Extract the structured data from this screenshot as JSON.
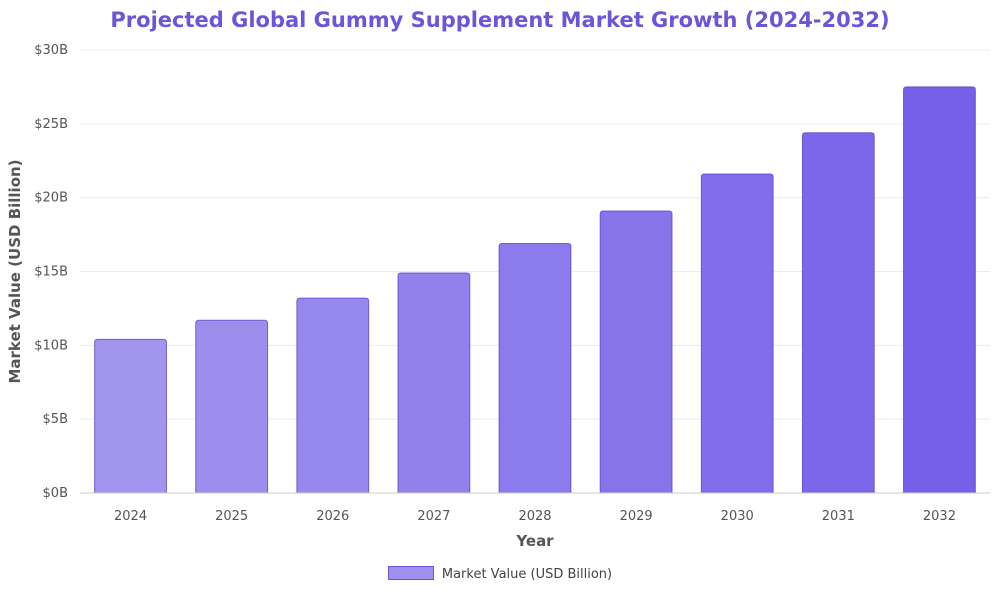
{
  "chart_data": {
    "type": "bar",
    "title": "Projected Global Gummy Supplement Market Growth (2024-2032)",
    "xlabel": "Year",
    "ylabel": "Market Value (USD Billion)",
    "categories": [
      "2024",
      "2025",
      "2026",
      "2027",
      "2028",
      "2029",
      "2030",
      "2031",
      "2032"
    ],
    "series": [
      {
        "name": "Market Value (USD Billion)",
        "values": [
          10.4,
          11.7,
          13.2,
          14.9,
          16.9,
          19.1,
          21.6,
          24.4,
          27.5
        ]
      }
    ],
    "ylim": [
      0,
      30
    ],
    "yticks": [
      0,
      5,
      10,
      15,
      20,
      25,
      30
    ],
    "ytick_labels": [
      "$0B",
      "$5B",
      "$10B",
      "$15B",
      "$20B",
      "$25B",
      "$30B"
    ],
    "grid": true,
    "legend_position": "bottom-center",
    "colors": {
      "title": "#6d55d9",
      "bar_light": "#a295ef",
      "bar_dark": "#7660e9",
      "bar_stroke": "#5b45c8",
      "grid": "#ececec",
      "axis": "#cccccc"
    }
  }
}
